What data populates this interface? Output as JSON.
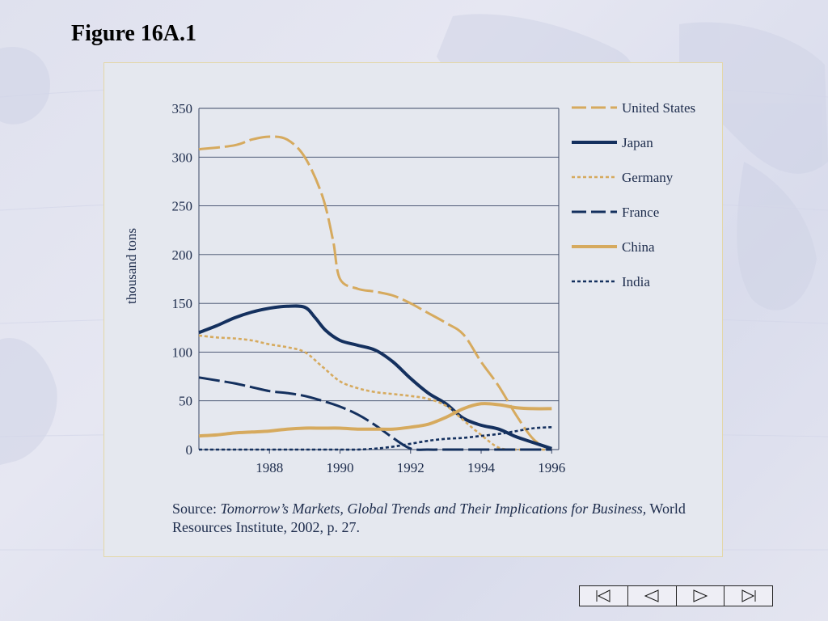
{
  "slide": {
    "title": "Figure 16A.1"
  },
  "source": {
    "prefix": "Source: ",
    "italic": "Tomorrow’s Markets, Global Trends and Their Implications for Business,",
    "suffix": " World Resources Institute, 2002, p. 27."
  },
  "nav": {
    "first_icon": "skip-to-first-icon",
    "prev_icon": "previous-icon",
    "next_icon": "next-icon",
    "last_icon": "skip-to-last-icon"
  },
  "chart_data": {
    "type": "line",
    "title": "",
    "xlabel": "",
    "ylabel": "thousand tons",
    "xlim": [
      1986,
      1996.2
    ],
    "ylim": [
      0,
      350
    ],
    "xticks": [
      1988,
      1990,
      1992,
      1994,
      1996
    ],
    "yticks": [
      0,
      50,
      100,
      150,
      200,
      250,
      300,
      350
    ],
    "grid": "horizontal",
    "legend_position": "right",
    "series": [
      {
        "name": "United States",
        "color": "#d6aa5e",
        "dash": "long-dash",
        "x": [
          1986,
          1987,
          1987.5,
          1988,
          1988.5,
          1989,
          1989.5,
          1989.8,
          1990,
          1990.5,
          1991,
          1991.5,
          1992,
          1992.5,
          1993,
          1993.5,
          1994,
          1994.5,
          1995,
          1995.5,
          1996
        ],
        "y": [
          308,
          312,
          318,
          321,
          318,
          300,
          260,
          215,
          175,
          165,
          162,
          158,
          150,
          140,
          130,
          118,
          90,
          65,
          35,
          10,
          0
        ]
      },
      {
        "name": "Japan",
        "color": "#14305e",
        "dash": "solid",
        "x": [
          1986,
          1986.5,
          1987,
          1987.5,
          1988,
          1988.5,
          1989,
          1989.3,
          1989.6,
          1990,
          1990.5,
          1991,
          1991.5,
          1992,
          1992.5,
          1993,
          1993.5,
          1994,
          1994.5,
          1995,
          1995.5,
          1996
        ],
        "y": [
          120,
          127,
          135,
          141,
          145,
          147,
          146,
          135,
          122,
          112,
          107,
          102,
          90,
          73,
          58,
          47,
          32,
          25,
          21,
          13,
          7,
          1
        ]
      },
      {
        "name": "Germany",
        "color": "#d6aa5e",
        "dash": "dotted",
        "x": [
          1986,
          1986.5,
          1987,
          1987.5,
          1988,
          1988.5,
          1989,
          1989.5,
          1990,
          1990.5,
          1991,
          1991.5,
          1992,
          1992.5,
          1993,
          1993.5,
          1994,
          1994.5,
          1995,
          1996
        ],
        "y": [
          117,
          115,
          114,
          112,
          108,
          105,
          100,
          85,
          70,
          63,
          59,
          57,
          55,
          52,
          45,
          30,
          15,
          2,
          0,
          0
        ]
      },
      {
        "name": "France",
        "color": "#14305e",
        "dash": "long-dash",
        "x": [
          1986,
          1986.5,
          1987,
          1987.5,
          1988,
          1988.5,
          1989,
          1989.5,
          1990,
          1990.5,
          1991,
          1991.5,
          1992,
          1992.5,
          1993,
          1994,
          1995,
          1996
        ],
        "y": [
          74,
          71,
          68,
          64,
          60,
          58,
          55,
          50,
          44,
          36,
          25,
          12,
          1,
          0,
          0,
          0,
          0,
          0
        ]
      },
      {
        "name": "China",
        "color": "#d6aa5e",
        "dash": "solid",
        "x": [
          1986,
          1986.5,
          1987,
          1987.5,
          1988,
          1988.5,
          1989,
          1989.5,
          1990,
          1990.5,
          1991,
          1991.5,
          1992,
          1992.5,
          1993,
          1993.5,
          1994,
          1994.5,
          1995,
          1995.5,
          1996
        ],
        "y": [
          14,
          15,
          17,
          18,
          19,
          21,
          22,
          22,
          22,
          21,
          21,
          21,
          23,
          26,
          33,
          42,
          47,
          46,
          43,
          42,
          42
        ]
      },
      {
        "name": "India",
        "color": "#14305e",
        "dash": "dotted",
        "x": [
          1986,
          1987,
          1988,
          1989,
          1990,
          1990.5,
          1991,
          1991.5,
          1992,
          1992.5,
          1993,
          1993.5,
          1994,
          1994.5,
          1995,
          1995.5,
          1996
        ],
        "y": [
          0,
          0,
          0,
          0,
          0,
          0,
          1,
          3,
          6,
          9,
          11,
          12,
          14,
          16,
          19,
          22,
          23
        ]
      }
    ]
  }
}
